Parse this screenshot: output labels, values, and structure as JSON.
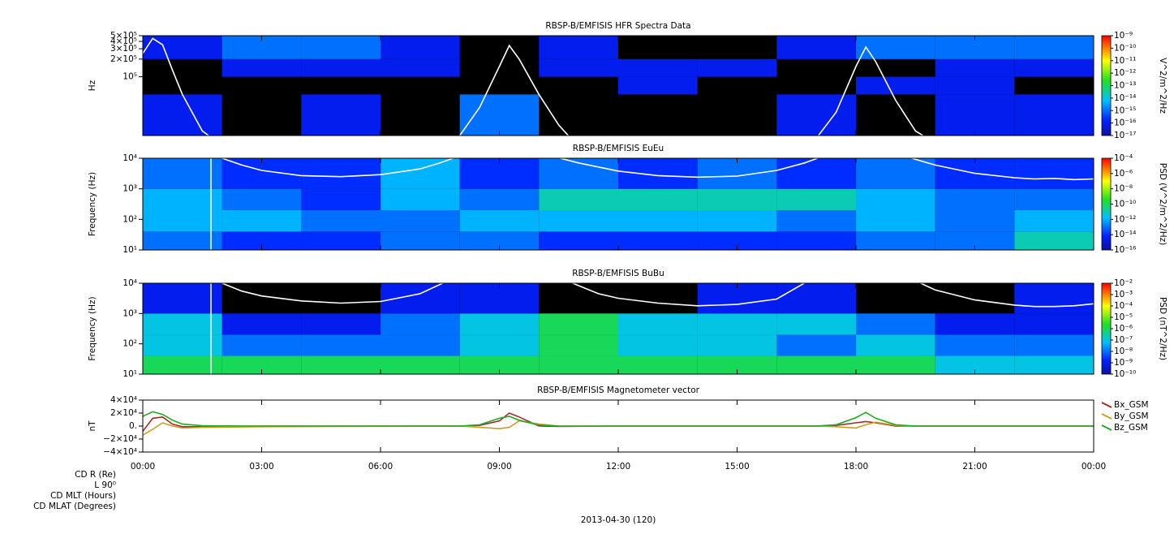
{
  "chart_data": [
    {
      "type": "heatmap",
      "title": "RBSP-B/EMFISIS  HFR Spectra Data",
      "ylabel": "Hz",
      "log_y": true,
      "xlim": [
        0,
        24
      ],
      "xticks": [
        0,
        3,
        6,
        9,
        12,
        15,
        18,
        21,
        24
      ],
      "ylim": [
        10000,
        500000
      ],
      "yticks": [
        {
          "value": 500000,
          "label": "5×10⁵"
        },
        {
          "value": 400000,
          "label": "4×10⁵"
        },
        {
          "value": 300000,
          "label": "3×10⁵"
        },
        {
          "value": 200000,
          "label": "2×10⁵"
        },
        {
          "value": 100000,
          "label": "10⁵"
        }
      ],
      "xbins": [
        0,
        2,
        4,
        6,
        8,
        10,
        12,
        14,
        16,
        18,
        20,
        22,
        24
      ],
      "ybins": [
        10000,
        50000,
        100000,
        200000,
        500000
      ],
      "z": [
        [
          1e-16,
          null,
          1e-16,
          null,
          1e-15,
          null,
          null,
          null,
          1e-16,
          null,
          1e-16,
          1e-16
        ],
        [
          null,
          null,
          null,
          null,
          null,
          null,
          1e-16,
          null,
          null,
          1e-16,
          1e-16,
          null
        ],
        [
          null,
          1e-16,
          1e-16,
          1e-16,
          null,
          1e-16,
          1e-16,
          1e-16,
          null,
          null,
          1e-16,
          1e-16
        ],
        [
          1e-16,
          1e-15,
          1e-15,
          1e-16,
          null,
          1e-16,
          null,
          null,
          1e-16,
          1e-15,
          1e-15,
          1e-15
        ]
      ],
      "clim": [
        1e-17,
        1e-09
      ],
      "cticks": [
        {
          "value": 1e-09,
          "label": "10⁻⁹"
        },
        {
          "value": 1e-10,
          "label": "10⁻¹⁰"
        },
        {
          "value": 1e-11,
          "label": "10⁻¹¹"
        },
        {
          "value": 1e-12,
          "label": "10⁻¹²"
        },
        {
          "value": 1e-13,
          "label": "10⁻¹³"
        },
        {
          "value": 1e-14,
          "label": "10⁻¹⁴"
        },
        {
          "value": 1e-15,
          "label": "10⁻¹⁵"
        },
        {
          "value": 1e-16,
          "label": "10⁻¹⁶"
        },
        {
          "value": 1e-17,
          "label": "10⁻¹⁷"
        }
      ],
      "colorbar_label": "V^2/m^2/Hz",
      "series": [
        {
          "color": "#ffffff",
          "x": [
            0,
            0.25,
            0.5,
            0.75,
            1,
            1.5,
            1.75,
            null,
            8,
            8.5,
            9,
            9.25,
            9.5,
            10,
            10.5,
            10.8,
            null,
            17,
            17.5,
            18,
            18.25,
            18.5,
            19,
            19.5,
            19.8
          ],
          "values": [
            250000,
            450000,
            350000,
            130000,
            50000,
            12000,
            9000,
            null,
            10000,
            30000,
            150000,
            340000,
            200000,
            50000,
            15000,
            9000,
            null,
            9000,
            25000,
            150000,
            320000,
            180000,
            40000,
            12000,
            9000
          ]
        }
      ]
    },
    {
      "type": "heatmap",
      "title": "RBSP-B/EMFISIS  EuEu",
      "ylabel": "Frequency (Hz)",
      "log_y": true,
      "xlim": [
        0,
        24
      ],
      "xticks": [
        0,
        3,
        6,
        9,
        12,
        15,
        18,
        21,
        24
      ],
      "ylim": [
        10,
        10000
      ],
      "yticks": [
        {
          "value": 10,
          "label": "10¹"
        },
        {
          "value": 100,
          "label": "10²"
        },
        {
          "value": 1000,
          "label": "10³"
        },
        {
          "value": 10000,
          "label": "10⁴"
        }
      ],
      "xbins": [
        0,
        2,
        4,
        6,
        8,
        10,
        12,
        14,
        16,
        18,
        20,
        22,
        24
      ],
      "ybins": [
        10,
        40,
        200,
        1000,
        10000
      ],
      "z": [
        [
          1e-13,
          1e-14,
          1e-14,
          1e-13,
          1e-13,
          1e-14,
          1e-14,
          1e-14,
          1e-14,
          1e-13,
          1e-13,
          1e-11
        ],
        [
          1e-12,
          1e-12,
          1e-13,
          1e-13,
          1e-12,
          1e-12,
          1e-12,
          1e-12,
          1e-13,
          1e-12,
          1e-13,
          1e-12
        ],
        [
          1e-12,
          1e-13,
          1e-14,
          1e-12,
          1e-13,
          1e-11,
          1e-11,
          1e-11,
          1e-11,
          1e-12,
          1e-13,
          1e-13
        ],
        [
          1e-13,
          1e-14,
          1e-14,
          1e-12,
          1e-14,
          1e-13,
          1e-14,
          1e-13,
          1e-14,
          1e-13,
          1e-14,
          1e-14
        ]
      ],
      "clim": [
        1e-16,
        0.0001
      ],
      "cticks": [
        {
          "value": 0.0001,
          "label": "10⁻⁴"
        },
        {
          "value": 1e-06,
          "label": "10⁻⁶"
        },
        {
          "value": 1e-08,
          "label": "10⁻⁸"
        },
        {
          "value": 1e-10,
          "label": "10⁻¹⁰"
        },
        {
          "value": 1e-12,
          "label": "10⁻¹²"
        },
        {
          "value": 1e-14,
          "label": "10⁻¹⁴"
        },
        {
          "value": 1e-16,
          "label": "10⁻¹⁶"
        }
      ],
      "colorbar_label": "PSD (V^2/m^2/Hz)",
      "series": [
        {
          "color": "#ffffff",
          "x": [
            1.72,
            1.72,
            2,
            2.5,
            3,
            4,
            5,
            6,
            7,
            7.5,
            8,
            null,
            10.3,
            11,
            12,
            13,
            14,
            15,
            16,
            16.7,
            17.2,
            null,
            19.2,
            20,
            21,
            22,
            22.5,
            23,
            23.5,
            24
          ],
          "values": [
            10,
            30000,
            10000,
            6000,
            4000,
            2700,
            2500,
            2900,
            4500,
            7000,
            12000,
            null,
            12000,
            7000,
            3800,
            2700,
            2400,
            2600,
            4000,
            7000,
            12000,
            null,
            12000,
            6000,
            3200,
            2300,
            2100,
            2200,
            2000,
            2100
          ]
        }
      ]
    },
    {
      "type": "heatmap",
      "title": "RBSP-B/EMFISIS  BuBu",
      "ylabel": "Frequency (Hz)",
      "log_y": true,
      "xlim": [
        0,
        24
      ],
      "xticks": [
        0,
        3,
        6,
        9,
        12,
        15,
        18,
        21,
        24
      ],
      "ylim": [
        10,
        10000
      ],
      "yticks": [
        {
          "value": 10,
          "label": "10¹"
        },
        {
          "value": 100,
          "label": "10²"
        },
        {
          "value": 1000,
          "label": "10³"
        },
        {
          "value": 10000,
          "label": "10⁴"
        }
      ],
      "xbins": [
        0,
        2,
        4,
        6,
        8,
        10,
        12,
        14,
        16,
        18,
        20,
        22,
        24
      ],
      "ybins": [
        10,
        40,
        200,
        1000,
        10000
      ],
      "z": [
        [
          1e-06,
          1e-06,
          1e-06,
          1e-06,
          1e-06,
          1e-06,
          1e-06,
          1e-06,
          1e-06,
          1e-06,
          1e-07,
          1e-07
        ],
        [
          1e-07,
          1e-08,
          1e-08,
          1e-08,
          1e-07,
          1e-06,
          1e-07,
          1e-07,
          1e-08,
          1e-07,
          1e-08,
          1e-08
        ],
        [
          1e-07,
          1e-09,
          1e-09,
          1e-08,
          1e-07,
          1e-06,
          1e-07,
          1e-07,
          1e-07,
          1e-08,
          1e-09,
          1e-09
        ],
        [
          1e-09,
          null,
          null,
          1e-09,
          1e-09,
          null,
          null,
          1e-09,
          1e-09,
          null,
          null,
          1e-09
        ]
      ],
      "clim": [
        1e-10,
        0.01
      ],
      "cticks": [
        {
          "value": 0.01,
          "label": "10⁻²"
        },
        {
          "value": 0.001,
          "label": "10⁻³"
        },
        {
          "value": 0.0001,
          "label": "10⁻⁴"
        },
        {
          "value": 1e-05,
          "label": "10⁻⁵"
        },
        {
          "value": 1e-06,
          "label": "10⁻⁶"
        },
        {
          "value": 1e-07,
          "label": "10⁻⁷"
        },
        {
          "value": 1e-08,
          "label": "10⁻⁸"
        },
        {
          "value": 1e-09,
          "label": "10⁻⁹"
        },
        {
          "value": 1e-10,
          "label": "10⁻¹⁰"
        }
      ],
      "colorbar_label": "PSD (nT^2/Hz)",
      "series": [
        {
          "color": "#ffffff",
          "x": [
            1.72,
            1.72,
            2,
            2.5,
            3,
            4,
            5,
            6,
            7,
            7.7,
            null,
            10.7,
            11.5,
            12,
            13,
            14,
            15,
            16,
            16.8,
            null,
            19.5,
            20,
            21,
            22,
            22.5,
            23,
            23.5,
            24
          ],
          "values": [
            10,
            30000,
            10000,
            5500,
            3800,
            2600,
            2200,
            2500,
            4500,
            12000,
            null,
            12000,
            4500,
            3200,
            2200,
            1800,
            2000,
            3000,
            12000,
            null,
            12000,
            6000,
            2800,
            1900,
            1700,
            1700,
            1800,
            2100
          ]
        }
      ]
    },
    {
      "type": "line",
      "title": "RBSP-B/EMFISIS  Magnetometer vector",
      "ylabel": "nT",
      "log_y": false,
      "xlim": [
        0,
        24
      ],
      "xticks": [
        {
          "value": 0,
          "label": "00:00"
        },
        {
          "value": 3,
          "label": "03:00"
        },
        {
          "value": 6,
          "label": "06:00"
        },
        {
          "value": 9,
          "label": "09:00"
        },
        {
          "value": 12,
          "label": "12:00"
        },
        {
          "value": 15,
          "label": "15:00"
        },
        {
          "value": 18,
          "label": "18:00"
        },
        {
          "value": 21,
          "label": "21:00"
        },
        {
          "value": 24,
          "label": "00:00"
        }
      ],
      "ylim": [
        -40000,
        40000
      ],
      "yticks": [
        {
          "value": 40000,
          "label": "4×10⁴"
        },
        {
          "value": 20000,
          "label": "2×10⁴"
        },
        {
          "value": 0,
          "label": "0."
        },
        {
          "value": -20000,
          "label": "−2×10⁴"
        },
        {
          "value": -40000,
          "label": "−4×10⁴"
        }
      ],
      "x": [
        0,
        0.25,
        0.5,
        0.75,
        1,
        1.5,
        3,
        8,
        8.5,
        9,
        9.25,
        9.5,
        10,
        10.5,
        12,
        17,
        17.5,
        18,
        18.25,
        18.5,
        19,
        19.5,
        24
      ],
      "legend": "right",
      "series": [
        {
          "name": "Bx_GSM",
          "color": "#a52a2a",
          "values": [
            -8000,
            12000,
            14000,
            3000,
            -1000,
            -1000,
            0,
            0,
            1000,
            8000,
            20000,
            14000,
            0,
            -500,
            0,
            0,
            1000,
            5000,
            7000,
            5000,
            0,
            0,
            0
          ]
        },
        {
          "name": "By_GSM",
          "color": "#c8a020",
          "values": [
            -14000,
            -5000,
            5000,
            0,
            -3000,
            -2000,
            -1000,
            0,
            -2000,
            -4000,
            -2000,
            8000,
            3000,
            0,
            0,
            0,
            -1000,
            -3000,
            2000,
            6000,
            1000,
            0,
            0
          ]
        },
        {
          "name": "Bz_GSM",
          "color": "#22aa22",
          "values": [
            15000,
            22000,
            18000,
            9000,
            3000,
            500,
            0,
            0,
            2000,
            12000,
            15000,
            9000,
            1500,
            0,
            0,
            0,
            2000,
            13000,
            21000,
            12000,
            2000,
            0,
            0
          ]
        }
      ],
      "xlabel": "2013-04-30 (120)",
      "ephemeris_labels": [
        "CD R (Re)",
        "L 90⁰",
        "CD MLT (Hours)",
        "CD MLAT (Degrees)"
      ]
    }
  ]
}
